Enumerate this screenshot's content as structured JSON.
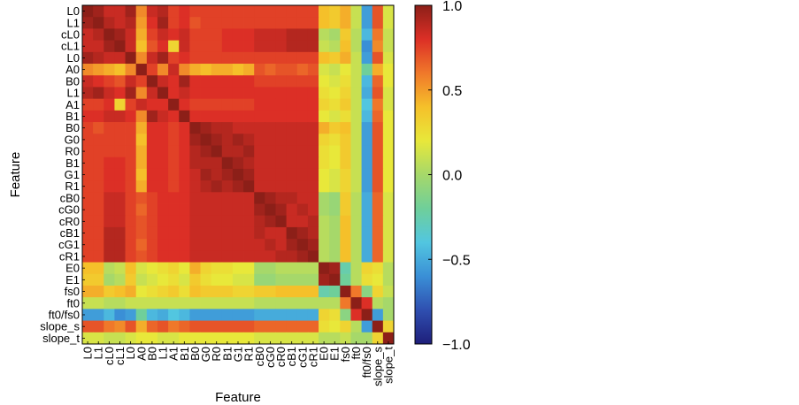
{
  "chart_data": {
    "type": "heatmap",
    "title": "",
    "xlabel": "Feature",
    "ylabel": "Feature",
    "features": [
      "L0",
      "L1",
      "cL0",
      "cL1",
      "L0",
      "A0",
      "B0",
      "L1",
      "A1",
      "B1",
      "B0",
      "G0",
      "R0",
      "B1",
      "G1",
      "R1",
      "cB0",
      "cG0",
      "cR0",
      "cB1",
      "cG1",
      "cR1",
      "E0",
      "E1",
      "fs0",
      "ft0",
      "ft0/fs0",
      "slope_s",
      "slope_t"
    ],
    "colorbar": {
      "min": -1.0,
      "max": 1.0,
      "ticks": [
        "1.0",
        "0.5",
        "0.0",
        "−0.5",
        "−1.0"
      ]
    },
    "colormap": [
      "#1e1e7a",
      "#2f4fb0",
      "#3a8fd6",
      "#52c6e0",
      "#6fcf9a",
      "#a6d86a",
      "#e8e83a",
      "#f5c02a",
      "#f0782a",
      "#dc2f26",
      "#8c1f18"
    ],
    "values": [
      [
        1.0,
        0.95,
        0.85,
        0.85,
        0.95,
        0.55,
        0.85,
        0.9,
        0.75,
        0.8,
        0.75,
        0.75,
        0.75,
        0.75,
        0.75,
        0.75,
        0.75,
        0.75,
        0.75,
        0.75,
        0.75,
        0.75,
        0.4,
        0.35,
        0.45,
        0.1,
        -0.55,
        0.7,
        0.15
      ],
      [
        0.95,
        1.0,
        0.9,
        0.85,
        0.9,
        0.5,
        0.8,
        0.95,
        0.75,
        0.8,
        0.7,
        0.75,
        0.75,
        0.75,
        0.75,
        0.75,
        0.75,
        0.75,
        0.75,
        0.75,
        0.75,
        0.75,
        0.4,
        0.35,
        0.45,
        0.1,
        -0.55,
        0.7,
        0.15
      ],
      [
        0.85,
        0.9,
        1.0,
        0.95,
        0.85,
        0.45,
        0.75,
        0.85,
        0.8,
        0.85,
        0.75,
        0.75,
        0.75,
        0.8,
        0.8,
        0.8,
        0.85,
        0.85,
        0.85,
        0.9,
        0.9,
        0.9,
        0.05,
        0.0,
        0.35,
        0.05,
        -0.45,
        0.6,
        0.1
      ],
      [
        0.85,
        0.85,
        0.95,
        1.0,
        0.85,
        0.4,
        0.7,
        0.8,
        0.3,
        0.85,
        0.75,
        0.75,
        0.75,
        0.8,
        0.8,
        0.8,
        0.85,
        0.85,
        0.85,
        0.9,
        0.9,
        0.9,
        0.1,
        0.05,
        0.4,
        0.05,
        -0.6,
        0.55,
        0.1
      ],
      [
        0.95,
        0.9,
        0.85,
        0.85,
        1.0,
        0.55,
        0.85,
        0.95,
        0.75,
        0.8,
        0.75,
        0.75,
        0.75,
        0.75,
        0.75,
        0.75,
        0.75,
        0.75,
        0.75,
        0.75,
        0.75,
        0.75,
        0.4,
        0.35,
        0.45,
        0.1,
        -0.55,
        0.7,
        0.15
      ],
      [
        0.55,
        0.5,
        0.45,
        0.4,
        0.55,
        1.0,
        0.75,
        0.55,
        0.85,
        0.55,
        0.45,
        0.4,
        0.45,
        0.45,
        0.4,
        0.45,
        0.7,
        0.65,
        0.7,
        0.7,
        0.65,
        0.7,
        0.15,
        0.1,
        0.2,
        0.1,
        -0.2,
        0.45,
        0.2
      ],
      [
        0.85,
        0.8,
        0.75,
        0.7,
        0.85,
        0.75,
        1.0,
        0.85,
        0.8,
        0.95,
        0.8,
        0.8,
        0.8,
        0.8,
        0.8,
        0.8,
        0.75,
        0.75,
        0.75,
        0.75,
        0.75,
        0.75,
        0.2,
        0.15,
        0.25,
        0.1,
        -0.45,
        0.65,
        0.2
      ],
      [
        0.9,
        0.95,
        0.85,
        0.8,
        0.95,
        0.55,
        0.85,
        1.0,
        0.8,
        0.85,
        0.8,
        0.8,
        0.8,
        0.8,
        0.8,
        0.8,
        0.8,
        0.8,
        0.8,
        0.8,
        0.8,
        0.8,
        0.25,
        0.2,
        0.3,
        0.1,
        -0.5,
        0.7,
        0.15
      ],
      [
        0.75,
        0.75,
        0.8,
        0.3,
        0.75,
        0.85,
        0.8,
        0.8,
        1.0,
        0.8,
        0.75,
        0.75,
        0.75,
        0.75,
        0.75,
        0.75,
        0.8,
        0.8,
        0.8,
        0.8,
        0.8,
        0.8,
        0.3,
        0.25,
        0.35,
        0.1,
        -0.4,
        0.6,
        0.15
      ],
      [
        0.8,
        0.8,
        0.85,
        0.85,
        0.8,
        0.55,
        0.95,
        0.85,
        0.8,
        1.0,
        0.8,
        0.8,
        0.8,
        0.8,
        0.8,
        0.8,
        0.8,
        0.8,
        0.8,
        0.8,
        0.8,
        0.8,
        0.2,
        0.15,
        0.25,
        0.1,
        -0.45,
        0.65,
        0.2
      ],
      [
        0.75,
        0.7,
        0.75,
        0.75,
        0.75,
        0.45,
        0.8,
        0.8,
        0.75,
        0.8,
        1.0,
        0.95,
        0.9,
        0.9,
        0.85,
        0.85,
        0.85,
        0.85,
        0.85,
        0.85,
        0.85,
        0.85,
        0.45,
        0.35,
        0.4,
        0.1,
        -0.55,
        0.7,
        0.2
      ],
      [
        0.75,
        0.75,
        0.75,
        0.75,
        0.75,
        0.4,
        0.8,
        0.8,
        0.75,
        0.8,
        0.95,
        1.0,
        0.95,
        0.9,
        0.95,
        0.9,
        0.85,
        0.85,
        0.85,
        0.85,
        0.85,
        0.85,
        0.3,
        0.25,
        0.35,
        0.1,
        -0.55,
        0.7,
        0.2
      ],
      [
        0.75,
        0.75,
        0.75,
        0.75,
        0.75,
        0.45,
        0.8,
        0.8,
        0.75,
        0.8,
        0.9,
        0.95,
        1.0,
        0.9,
        0.9,
        0.95,
        0.85,
        0.85,
        0.85,
        0.85,
        0.85,
        0.85,
        0.25,
        0.2,
        0.35,
        0.1,
        -0.55,
        0.7,
        0.2
      ],
      [
        0.75,
        0.75,
        0.8,
        0.8,
        0.75,
        0.45,
        0.8,
        0.8,
        0.75,
        0.8,
        0.9,
        0.9,
        0.9,
        1.0,
        0.95,
        0.9,
        0.85,
        0.85,
        0.85,
        0.85,
        0.85,
        0.85,
        0.25,
        0.2,
        0.35,
        0.1,
        -0.55,
        0.7,
        0.2
      ],
      [
        0.75,
        0.75,
        0.8,
        0.8,
        0.75,
        0.4,
        0.8,
        0.8,
        0.75,
        0.8,
        0.85,
        0.95,
        0.9,
        0.95,
        1.0,
        0.95,
        0.85,
        0.85,
        0.85,
        0.85,
        0.85,
        0.85,
        0.2,
        0.15,
        0.3,
        0.1,
        -0.55,
        0.7,
        0.2
      ],
      [
        0.75,
        0.75,
        0.8,
        0.8,
        0.75,
        0.45,
        0.8,
        0.8,
        0.75,
        0.8,
        0.85,
        0.9,
        0.95,
        0.9,
        0.95,
        1.0,
        0.85,
        0.85,
        0.85,
        0.85,
        0.85,
        0.85,
        0.2,
        0.15,
        0.3,
        0.1,
        -0.55,
        0.7,
        0.2
      ],
      [
        0.75,
        0.75,
        0.85,
        0.85,
        0.75,
        0.7,
        0.75,
        0.8,
        0.8,
        0.8,
        0.85,
        0.85,
        0.85,
        0.85,
        0.85,
        0.85,
        1.0,
        0.95,
        0.9,
        0.9,
        0.85,
        0.85,
        0.0,
        -0.05,
        0.35,
        0.05,
        -0.5,
        0.65,
        0.15
      ],
      [
        0.75,
        0.75,
        0.85,
        0.85,
        0.75,
        0.65,
        0.75,
        0.8,
        0.8,
        0.8,
        0.85,
        0.85,
        0.85,
        0.85,
        0.85,
        0.85,
        0.95,
        1.0,
        0.95,
        0.85,
        0.9,
        0.85,
        0.0,
        -0.05,
        0.35,
        0.05,
        -0.5,
        0.65,
        0.15
      ],
      [
        0.75,
        0.75,
        0.85,
        0.85,
        0.75,
        0.7,
        0.75,
        0.8,
        0.8,
        0.8,
        0.85,
        0.85,
        0.85,
        0.85,
        0.85,
        0.85,
        0.9,
        0.95,
        1.0,
        0.85,
        0.85,
        0.9,
        0.05,
        0.0,
        0.4,
        0.05,
        -0.5,
        0.65,
        0.15
      ],
      [
        0.75,
        0.75,
        0.9,
        0.9,
        0.75,
        0.7,
        0.75,
        0.8,
        0.8,
        0.8,
        0.85,
        0.85,
        0.85,
        0.85,
        0.85,
        0.85,
        0.9,
        0.85,
        0.85,
        1.0,
        0.95,
        0.9,
        0.05,
        0.0,
        0.4,
        0.05,
        -0.5,
        0.65,
        0.15
      ],
      [
        0.75,
        0.75,
        0.9,
        0.9,
        0.75,
        0.65,
        0.75,
        0.8,
        0.8,
        0.8,
        0.85,
        0.85,
        0.85,
        0.85,
        0.85,
        0.85,
        0.85,
        0.9,
        0.85,
        0.95,
        1.0,
        0.95,
        0.05,
        0.0,
        0.4,
        0.05,
        -0.5,
        0.65,
        0.15
      ],
      [
        0.75,
        0.75,
        0.9,
        0.9,
        0.75,
        0.7,
        0.75,
        0.8,
        0.8,
        0.8,
        0.85,
        0.85,
        0.85,
        0.85,
        0.85,
        0.85,
        0.85,
        0.85,
        0.9,
        0.9,
        0.95,
        1.0,
        0.05,
        0.0,
        0.4,
        0.05,
        -0.5,
        0.65,
        0.15
      ],
      [
        0.4,
        0.4,
        0.05,
        0.1,
        0.4,
        0.15,
        0.2,
        0.25,
        0.3,
        0.2,
        0.45,
        0.3,
        0.25,
        0.25,
        0.2,
        0.2,
        0.0,
        0.0,
        0.05,
        0.05,
        0.05,
        0.05,
        1.0,
        0.95,
        -0.25,
        0.05,
        0.3,
        0.25,
        0.05
      ],
      [
        0.35,
        0.35,
        0.0,
        0.05,
        0.35,
        0.1,
        0.15,
        0.2,
        0.25,
        0.15,
        0.35,
        0.25,
        0.2,
        0.2,
        0.15,
        0.15,
        -0.05,
        -0.05,
        0.0,
        0.0,
        0.0,
        0.0,
        0.95,
        1.0,
        -0.2,
        0.05,
        0.25,
        0.2,
        0.05
      ],
      [
        0.45,
        0.45,
        0.35,
        0.4,
        0.45,
        0.2,
        0.25,
        0.3,
        0.35,
        0.25,
        0.4,
        0.35,
        0.35,
        0.35,
        0.3,
        0.3,
        0.35,
        0.35,
        0.4,
        0.4,
        0.4,
        0.4,
        -0.25,
        -0.2,
        1.0,
        0.6,
        -0.1,
        0.3,
        0.1
      ],
      [
        0.1,
        0.1,
        0.05,
        0.05,
        0.1,
        0.1,
        0.1,
        0.1,
        0.1,
        0.1,
        0.1,
        0.1,
        0.1,
        0.1,
        0.1,
        0.1,
        0.05,
        0.05,
        0.05,
        0.05,
        0.05,
        0.05,
        0.05,
        0.05,
        0.6,
        1.0,
        0.8,
        0.05,
        0.0
      ],
      [
        -0.55,
        -0.55,
        -0.45,
        -0.6,
        -0.55,
        -0.2,
        -0.45,
        -0.5,
        -0.4,
        -0.45,
        -0.55,
        -0.55,
        -0.55,
        -0.55,
        -0.55,
        -0.55,
        -0.5,
        -0.5,
        -0.5,
        -0.5,
        -0.5,
        -0.5,
        0.3,
        0.25,
        -0.1,
        0.8,
        1.0,
        -0.55,
        0.0
      ],
      [
        0.7,
        0.7,
        0.6,
        0.55,
        0.7,
        0.45,
        0.65,
        0.7,
        0.6,
        0.65,
        0.7,
        0.7,
        0.7,
        0.7,
        0.7,
        0.7,
        0.65,
        0.65,
        0.65,
        0.65,
        0.65,
        0.65,
        0.25,
        0.2,
        0.3,
        0.05,
        -0.55,
        1.0,
        0.3
      ],
      [
        0.15,
        0.15,
        0.1,
        0.1,
        0.15,
        0.2,
        0.2,
        0.15,
        0.15,
        0.2,
        0.2,
        0.2,
        0.2,
        0.2,
        0.2,
        0.2,
        0.15,
        0.15,
        0.15,
        0.15,
        0.15,
        0.15,
        0.05,
        0.05,
        0.1,
        0.0,
        0.0,
        0.3,
        1.0
      ]
    ]
  }
}
